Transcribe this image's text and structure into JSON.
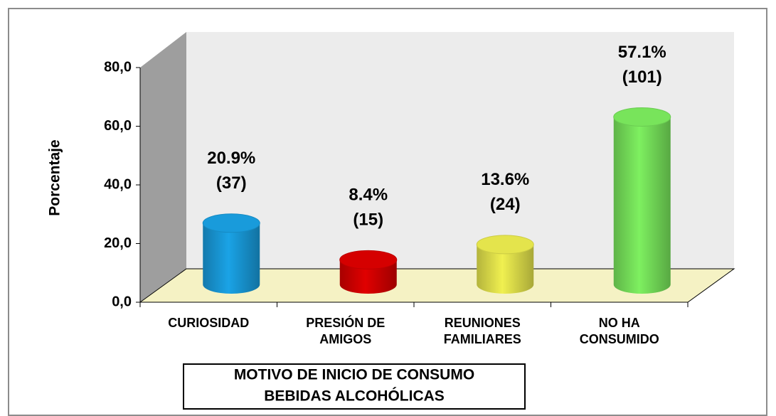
{
  "chart_data": {
    "type": "bar",
    "y_label": "Porcentaje",
    "x_label": [
      "MOTIVO DE INICIO DE CONSUMO",
      "BEBIDAS ALCOHÓLICAS"
    ],
    "categories": [
      [
        "CURIOSIDAD"
      ],
      [
        "PRESIÓN DE",
        "AMIGOS"
      ],
      [
        "REUNIONES",
        "FAMILIARES"
      ],
      [
        "NO HA",
        "CONSUMIDO"
      ]
    ],
    "values": [
      20.9,
      8.4,
      13.6,
      57.1
    ],
    "value_labels": [
      "20.9%",
      "8.4%",
      "13.6%",
      "57.1%"
    ],
    "count_labels": [
      "(37)",
      "(15)",
      "(24)",
      "(101)"
    ],
    "colors": [
      "#1aa3e6",
      "#e00000",
      "#f0f050",
      "#7ef060"
    ],
    "ylim": [
      0,
      80
    ],
    "yticks": [
      {
        "value": 0,
        "label": "0,0"
      },
      {
        "value": 20,
        "label": "20,0"
      },
      {
        "value": 40,
        "label": "40,0"
      },
      {
        "value": 60,
        "label": "60,0"
      },
      {
        "value": 80,
        "label": "80,0"
      }
    ]
  }
}
